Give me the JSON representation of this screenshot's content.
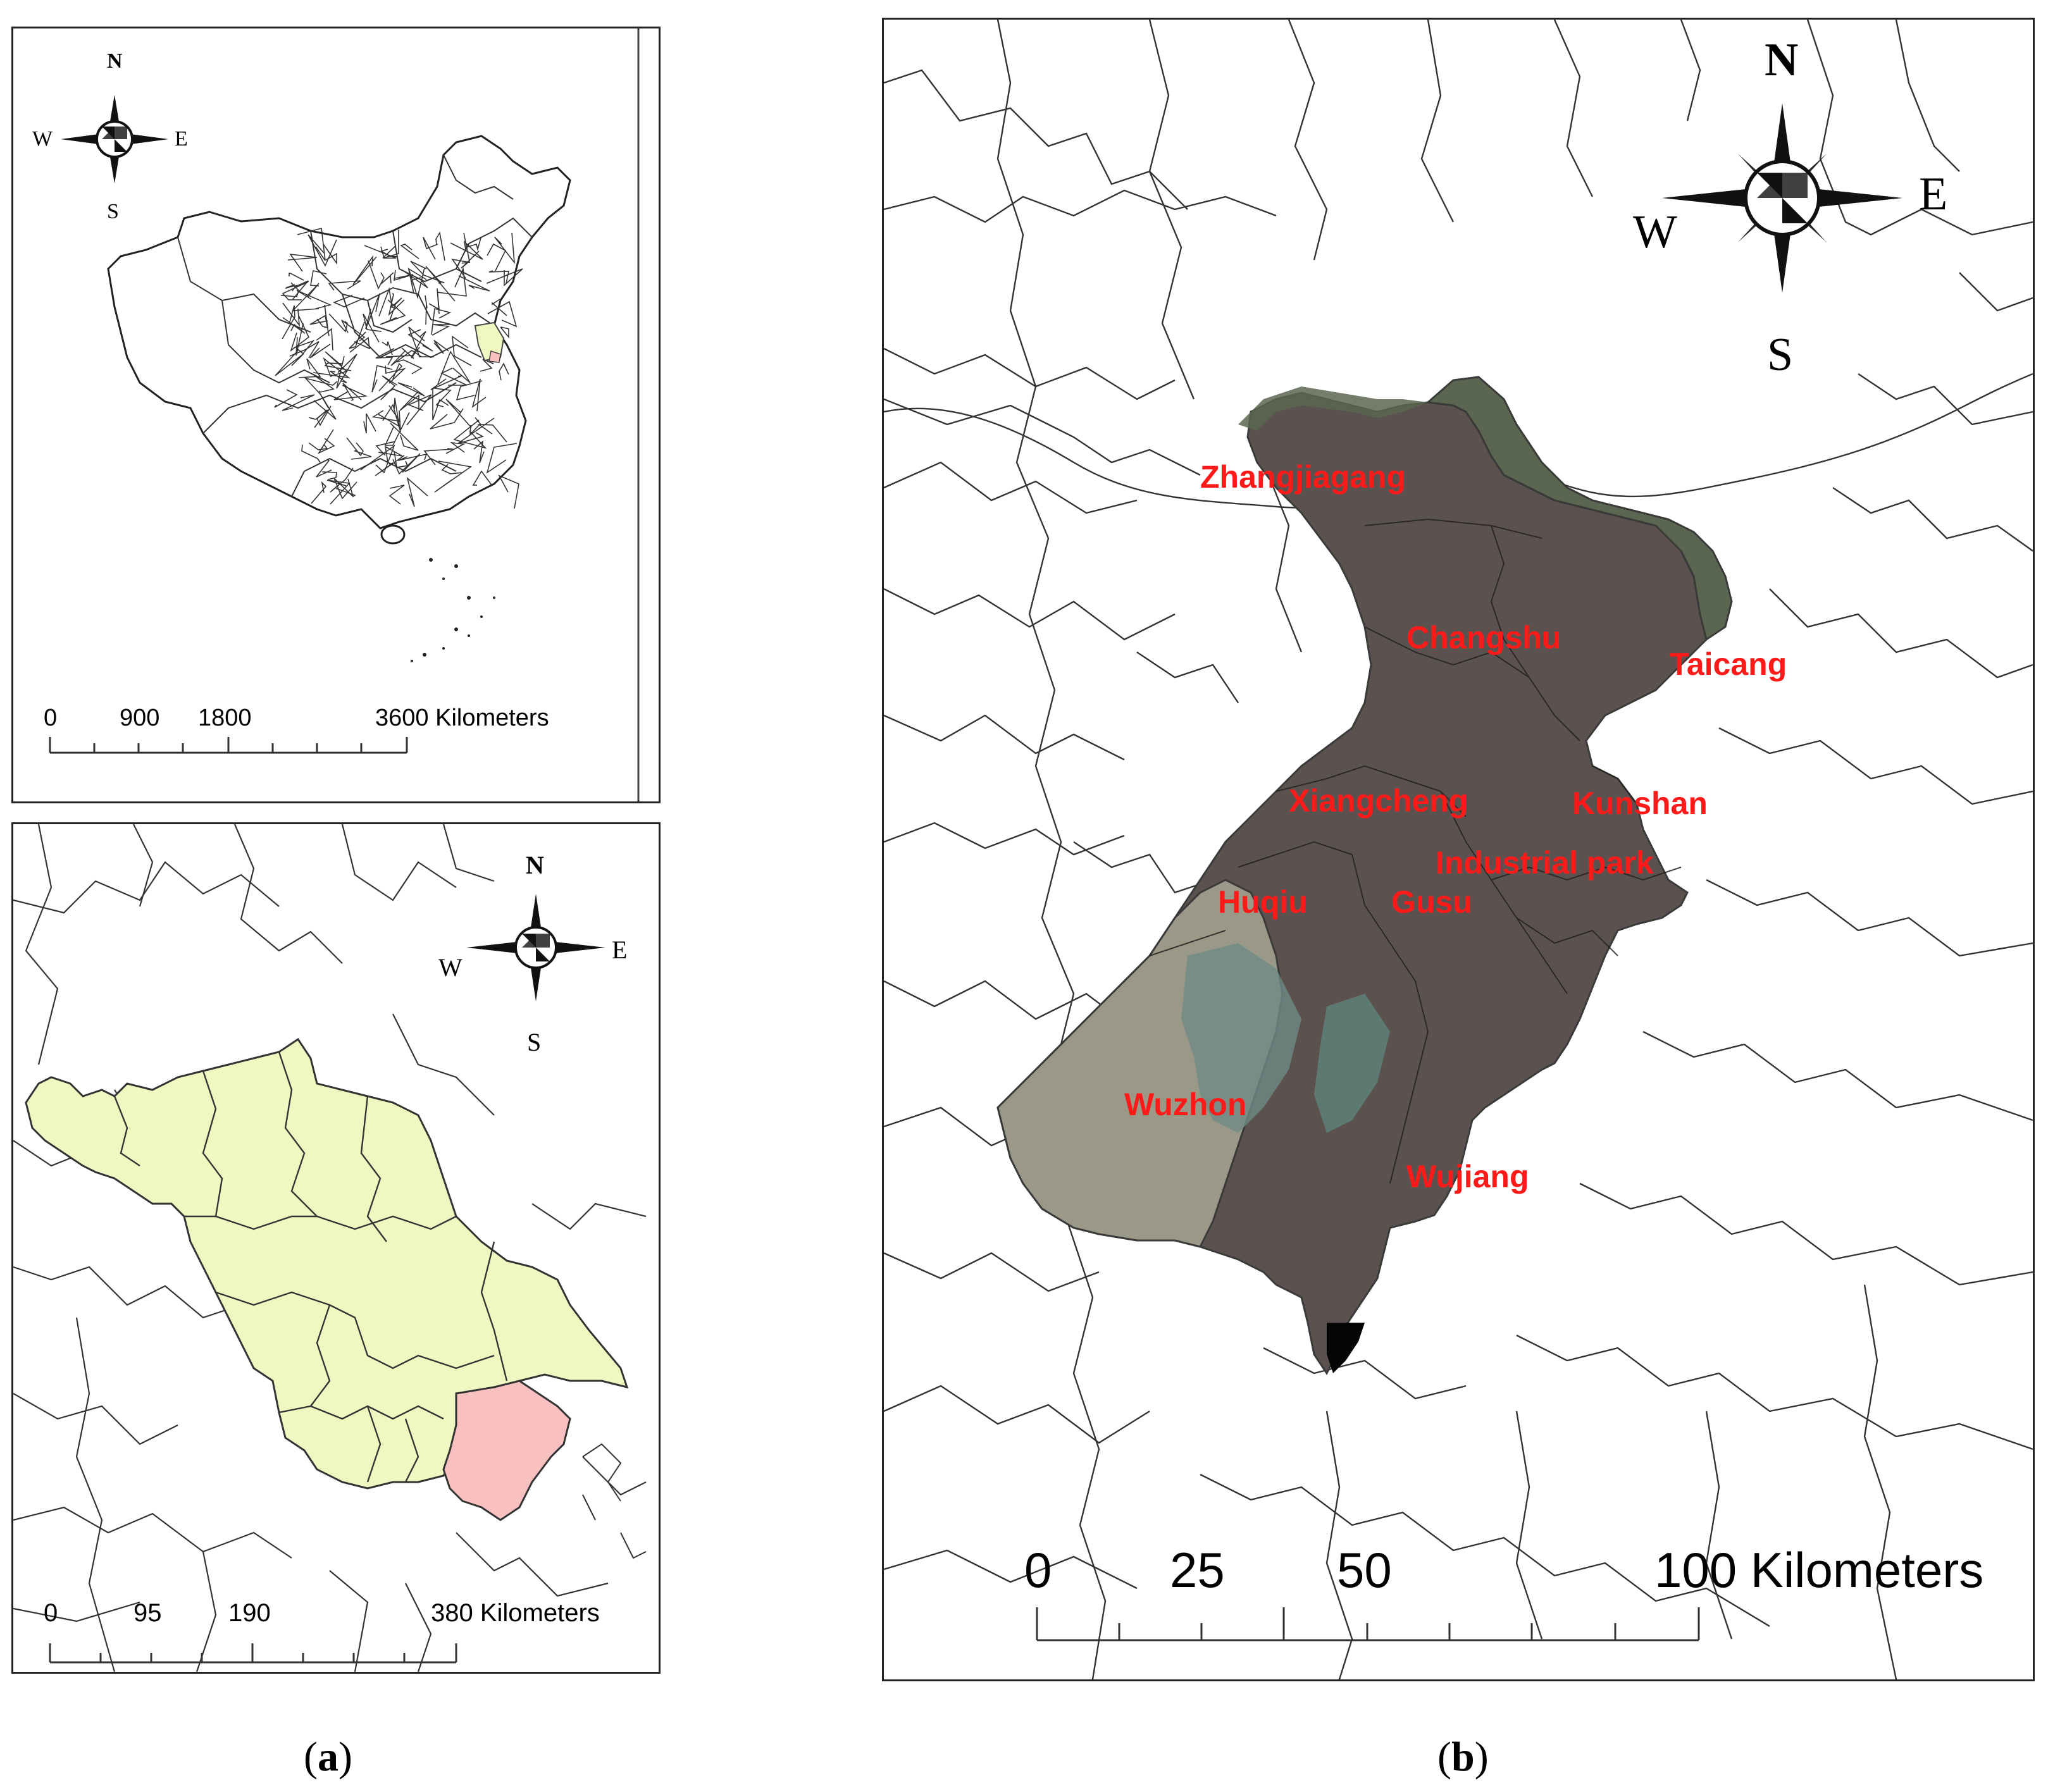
{
  "panel_a_top": {
    "compass": {
      "n": "N",
      "s": "S",
      "e": "E",
      "w": "W"
    },
    "scale_ticks": [
      "0",
      "900",
      "1800",
      "3600 Kilometers"
    ]
  },
  "panel_a_bottom": {
    "compass": {
      "n": "N",
      "s": "S",
      "e": "E",
      "w": "W"
    },
    "scale_ticks": [
      "0",
      "95",
      "190",
      "380 Kilometers"
    ],
    "colors": {
      "province": "#eef8c0",
      "suzhou": "#f9c0c0"
    }
  },
  "panel_b": {
    "compass": {
      "n": "N",
      "s": "S",
      "e": "E",
      "w": "W"
    },
    "scale_ticks": [
      "0",
      "25",
      "50",
      "100 Kilometers"
    ],
    "district_labels": [
      "Zhangjiagang",
      "Changshu",
      "Taicang",
      "Xiangcheng",
      "Kunshan",
      "Industrial park",
      "Huqiu",
      "Gusu",
      "Wuzhon",
      "Wujiang"
    ],
    "label_color": "#ff1a1a"
  },
  "captions": {
    "a": "a",
    "b": "b"
  }
}
